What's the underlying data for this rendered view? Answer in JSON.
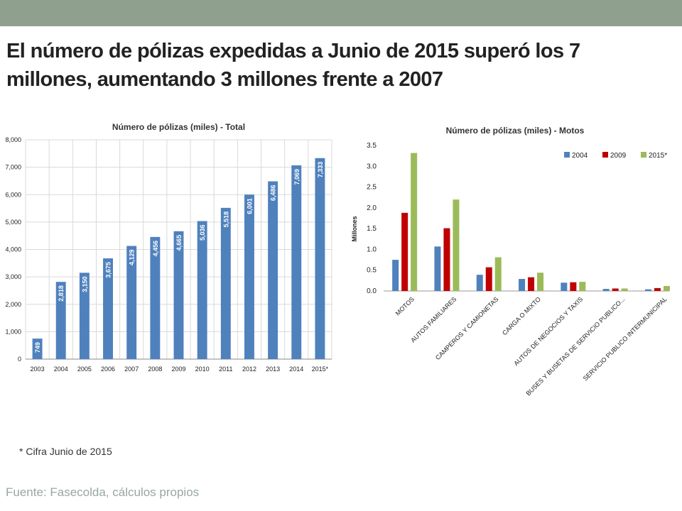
{
  "headline": "El número de pólizas expedidas a Junio de 2015 superó los 7 millones, aumentando 3 millones frente a 2007",
  "footnote": "* Cifra Junio de 2015",
  "source": "Fuente: Fasecolda, cálculos propios",
  "colors": {
    "topbar": "#8fa08f",
    "bar_blue": "#4f81bd",
    "bar_red": "#c00000",
    "bar_green": "#9bbb59"
  },
  "chart_data": [
    {
      "type": "bar",
      "title": "Número de pólizas (miles) - Total",
      "categories": [
        "2003",
        "2004",
        "2005",
        "2006",
        "2007",
        "2008",
        "2009",
        "2010",
        "2011",
        "2012",
        "2013",
        "2014",
        "2015*"
      ],
      "values": [
        749,
        2818,
        3150,
        3675,
        4129,
        4456,
        4665,
        5036,
        5518,
        6001,
        6486,
        7069,
        7333
      ],
      "data_labels": [
        "749",
        "2,818",
        "3,150",
        "3,675",
        "4,129",
        "4,456",
        "4,665",
        "5,036",
        "5,518",
        "6,001",
        "6,486",
        "7,069",
        "7,333"
      ],
      "yticks": [
        "0",
        "1,000",
        "2,000",
        "3,000",
        "4,000",
        "5,000",
        "6,000",
        "7,000",
        "8,000"
      ],
      "ylim": [
        0,
        8000
      ],
      "grid": true,
      "color": "#4f81bd"
    },
    {
      "type": "bar",
      "title": "Número de pólizas (miles) - Motos",
      "ylabel": "Millones",
      "categories": [
        "MOTOS",
        "AUTOS FAMILIARES",
        "CAMPEROS Y CAMIONETAS",
        "CARGA O MIXTO",
        "AUTOS DE NEGOCIOS Y TAXIS",
        "BUSES Y BUSETAS DE SERVICIO PUBLICO...",
        "SERVICIO PUBLICO INTERMUNICIPAL"
      ],
      "series": [
        {
          "name": "2004",
          "color": "#4f81bd",
          "values": [
            0.75,
            1.07,
            0.39,
            0.29,
            0.2,
            0.05,
            0.04
          ]
        },
        {
          "name": "2009",
          "color": "#c00000",
          "values": [
            1.88,
            1.51,
            0.57,
            0.33,
            0.21,
            0.06,
            0.07
          ]
        },
        {
          "name": "2015*",
          "color": "#9bbb59",
          "values": [
            3.32,
            2.2,
            0.81,
            0.44,
            0.22,
            0.06,
            0.12
          ]
        }
      ],
      "yticks": [
        "0.0",
        "0.5",
        "1.0",
        "1.5",
        "2.0",
        "2.5",
        "3.0",
        "3.5"
      ],
      "ylim": [
        0,
        3.5
      ],
      "grid": false,
      "legend": "top-right"
    }
  ]
}
